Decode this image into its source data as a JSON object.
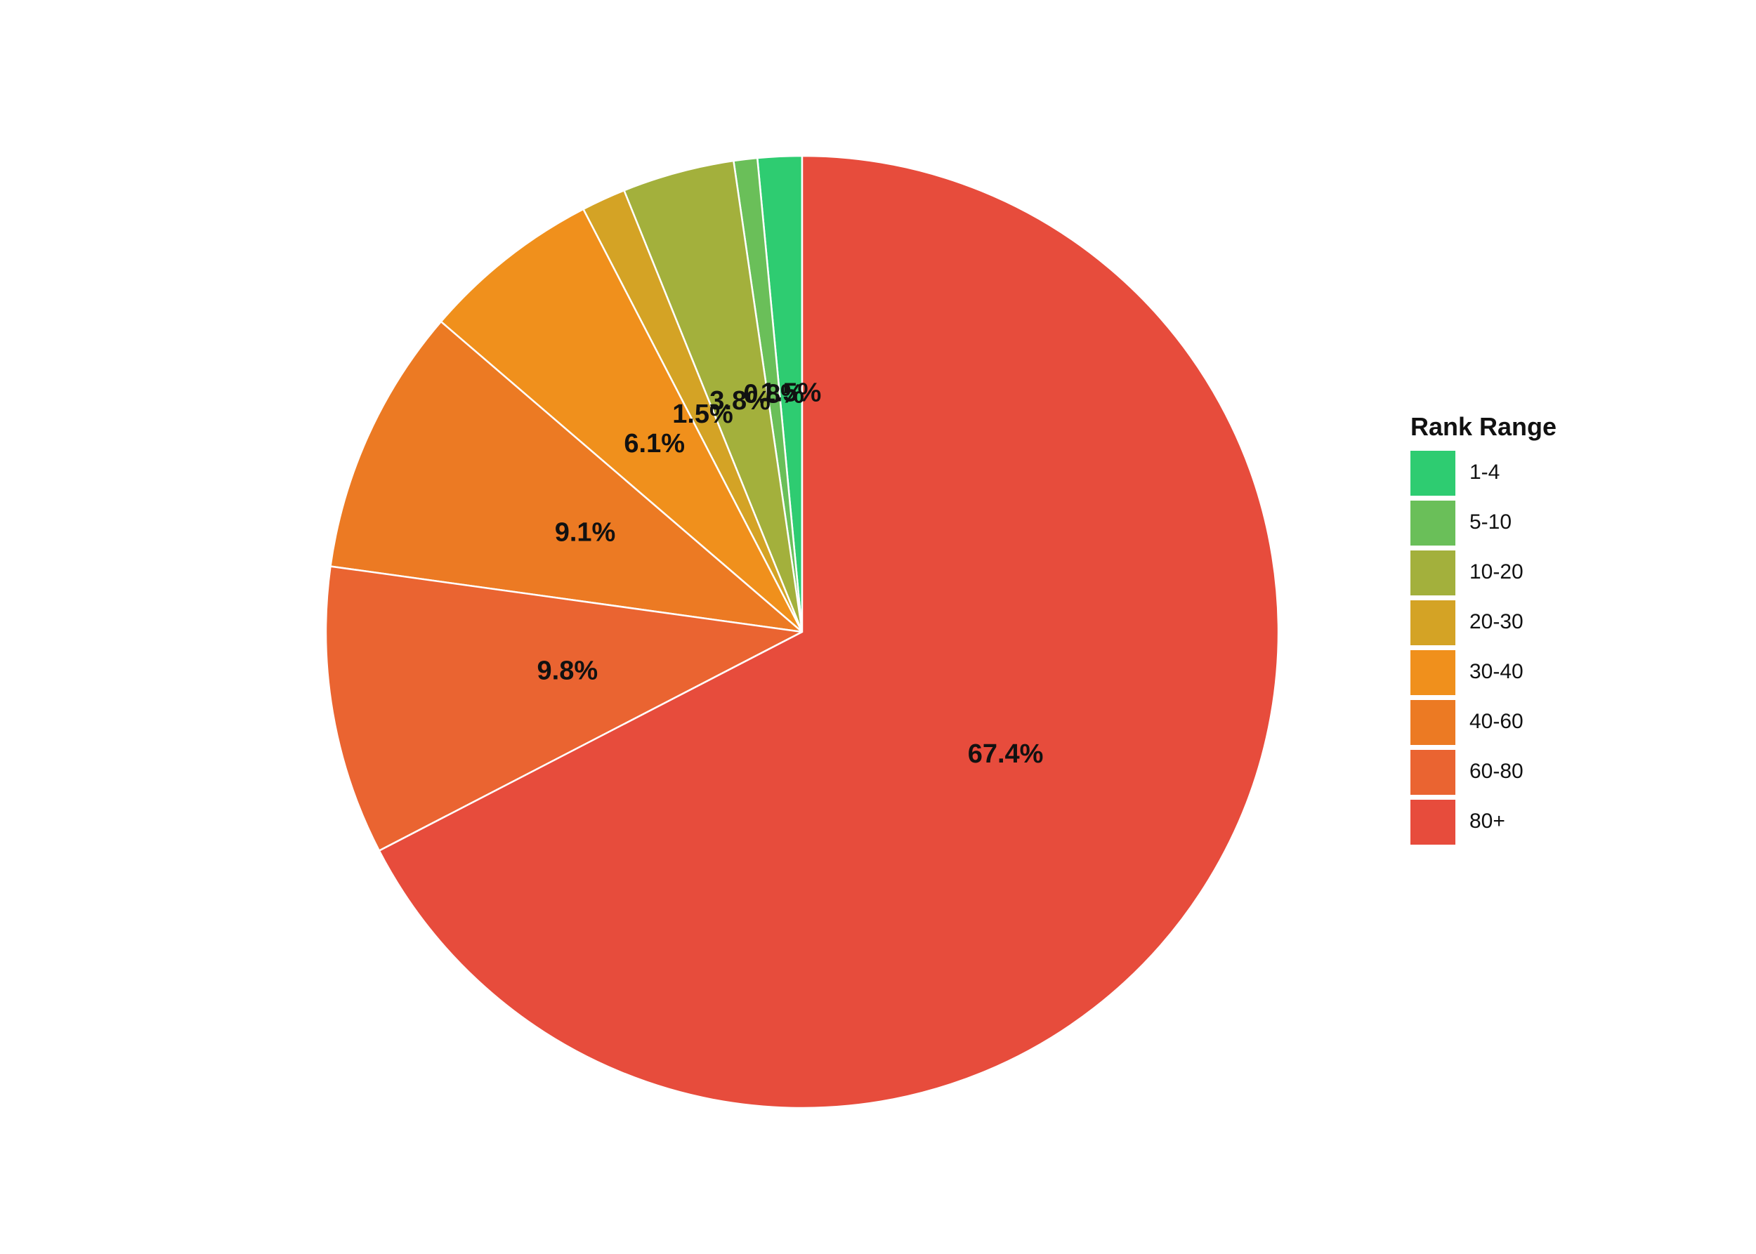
{
  "chart_data": {
    "type": "pie",
    "legend_title": "Rank Range",
    "legend_placement": "right",
    "slices": [
      {
        "label": "1-4",
        "value": 1.5,
        "display": "1.5%",
        "color": "#2ecc71"
      },
      {
        "label": "5-10",
        "value": 0.8,
        "display": "0.8%",
        "color": "#6abf59"
      },
      {
        "label": "10-20",
        "value": 3.8,
        "display": "3.8%",
        "color": "#a3b03c"
      },
      {
        "label": "20-30",
        "value": 1.5,
        "display": "1.5%",
        "color": "#d4a325"
      },
      {
        "label": "30-40",
        "value": 6.1,
        "display": "6.1%",
        "color": "#f0901c"
      },
      {
        "label": "40-60",
        "value": 9.1,
        "display": "9.1%",
        "color": "#ec7a23"
      },
      {
        "label": "60-80",
        "value": 9.8,
        "display": "9.8%",
        "color": "#ea6431"
      },
      {
        "label": "80+",
        "value": 67.4,
        "display": "67.4%",
        "color": "#e74c3c"
      }
    ]
  }
}
